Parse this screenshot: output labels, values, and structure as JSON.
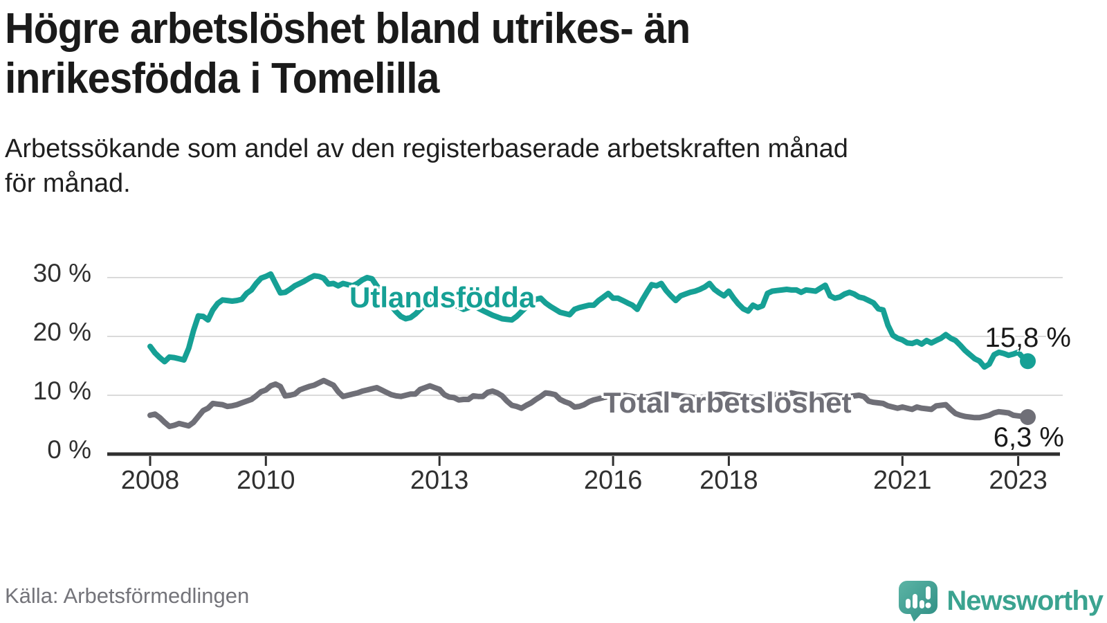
{
  "header": {
    "title_lines": [
      "Högre arbetslöshet bland utrikes- än",
      "inrikesfödda i Tomelilla"
    ],
    "subtitle_lines": [
      "Arbetssökande som andel av den registerbaserade arbetskraften månad",
      "för månad."
    ]
  },
  "chart_data": {
    "type": "line",
    "title": "Högre arbetslöshet bland utrikes- än inrikesfödda i Tomelilla",
    "subtitle": "Arbetssökande som andel av den registerbaserade arbetskraften månad för månad.",
    "frequency": "monthly",
    "x_start": "2008-01",
    "x_end": "2023-03",
    "xlabel": "",
    "ylabel": "",
    "ylim": [
      0,
      32
    ],
    "grid": "horizontal",
    "legend_position": "inline-labels",
    "x_axis": {
      "tick_years": [
        2008,
        2010,
        2013,
        2016,
        2018,
        2021,
        2023
      ]
    },
    "y_axis": {
      "ticks": [
        {
          "value": 0,
          "label": "0 %"
        },
        {
          "value": 10,
          "label": "10 %"
        },
        {
          "value": 20,
          "label": "20 %"
        },
        {
          "value": 30,
          "label": "30 %"
        }
      ]
    },
    "series": [
      {
        "name": "Utlandsfödda",
        "label": "Utlandsfödda",
        "color": "#16a095",
        "end_label": "15,8 %",
        "last_value": 15.8,
        "values": [
          18.3,
          17.2,
          16.4,
          15.7,
          16.5,
          16.4,
          16.2,
          16.0,
          18.0,
          21.0,
          23.5,
          23.4,
          22.8,
          24.5,
          25.6,
          26.2,
          26.1,
          26.0,
          26.1,
          26.3,
          27.3,
          27.9,
          29.0,
          29.9,
          30.2,
          30.6,
          29.0,
          27.4,
          27.5,
          28.0,
          28.6,
          29.0,
          29.4,
          29.9,
          30.3,
          30.2,
          29.9,
          28.9,
          29.0,
          28.6,
          29.0,
          28.8,
          28.6,
          29.0,
          29.6,
          30.0,
          29.8,
          28.6,
          27.5,
          26.3,
          25.2,
          24.2,
          23.4,
          23.0,
          23.2,
          23.8,
          24.6,
          25.4,
          25.9,
          26.2,
          26.0,
          25.7,
          25.9,
          25.4,
          25.0,
          24.6,
          24.9,
          25.2,
          24.8,
          24.4,
          24.0,
          23.6,
          23.3,
          23.0,
          22.9,
          22.8,
          23.4,
          24.2,
          25.0,
          25.8,
          26.3,
          26.5,
          25.7,
          25.1,
          24.6,
          24.1,
          23.9,
          23.7,
          24.6,
          24.9,
          25.1,
          25.3,
          25.3,
          26.1,
          26.7,
          27.3,
          26.5,
          26.5,
          26.1,
          25.7,
          25.3,
          24.6,
          26.1,
          27.5,
          28.8,
          28.6,
          29.0,
          27.8,
          26.9,
          26.1,
          26.9,
          27.2,
          27.5,
          27.7,
          28.0,
          28.4,
          29.0,
          28.0,
          27.4,
          26.9,
          27.7,
          26.5,
          25.5,
          24.7,
          24.3,
          25.3,
          24.9,
          25.2,
          27.3,
          27.7,
          27.8,
          27.9,
          28.0,
          27.9,
          27.9,
          27.5,
          27.9,
          27.8,
          27.7,
          28.2,
          28.7,
          26.9,
          26.5,
          26.7,
          27.2,
          27.5,
          27.2,
          26.7,
          26.5,
          26.1,
          25.7,
          24.7,
          24.5,
          21.9,
          20.2,
          19.7,
          19.4,
          18.9,
          18.8,
          19.1,
          18.7,
          19.3,
          18.9,
          19.3,
          19.7,
          20.3,
          19.7,
          19.3,
          18.5,
          17.6,
          16.9,
          16.2,
          15.8,
          14.8,
          15.3,
          16.9,
          17.3,
          17.1,
          16.8,
          17.0,
          17.3,
          16.4,
          15.8
        ]
      },
      {
        "name": "Total arbetslöshet",
        "label": "Total arbetslöshet",
        "color": "#6f6f77",
        "end_label": "6,3 %",
        "last_value": 6.3,
        "values": [
          6.6,
          6.8,
          6.2,
          5.4,
          4.7,
          4.9,
          5.2,
          5.0,
          4.8,
          5.4,
          6.4,
          7.4,
          7.8,
          8.6,
          8.5,
          8.4,
          8.1,
          8.2,
          8.4,
          8.7,
          9.0,
          9.3,
          9.9,
          10.6,
          10.9,
          11.6,
          11.9,
          11.5,
          9.9,
          10.0,
          10.2,
          10.9,
          11.2,
          11.5,
          11.7,
          12.1,
          12.5,
          12.1,
          11.7,
          10.6,
          9.8,
          10.0,
          10.2,
          10.4,
          10.7,
          10.9,
          11.1,
          11.3,
          10.9,
          10.5,
          10.1,
          9.9,
          9.8,
          10.0,
          10.2,
          10.2,
          11.0,
          11.3,
          11.6,
          11.3,
          11.0,
          10.1,
          9.7,
          9.6,
          9.2,
          9.3,
          9.3,
          9.9,
          9.8,
          9.8,
          10.5,
          10.7,
          10.4,
          9.9,
          9.0,
          8.3,
          8.1,
          7.8,
          8.3,
          8.7,
          9.3,
          9.8,
          10.4,
          10.3,
          10.1,
          9.3,
          8.9,
          8.6,
          8.0,
          8.1,
          8.4,
          8.9,
          9.2,
          9.4,
          9.6,
          9.8,
          9.9,
          10.0,
          10.0,
          9.9,
          9.8,
          9.6,
          9.5,
          9.7,
          9.9,
          10.1,
          10.2,
          10.2,
          10.1,
          10.0,
          9.9,
          9.8,
          9.7,
          9.6,
          9.6,
          9.7,
          9.9,
          10.0,
          10.1,
          10.2,
          10.1,
          10.0,
          9.9,
          9.8,
          9.7,
          9.6,
          9.6,
          9.7,
          9.8,
          10.0,
          10.1,
          10.2,
          10.3,
          10.4,
          10.2,
          10.1,
          10.0,
          9.9,
          9.8,
          9.8,
          9.9,
          10.0,
          10.0,
          9.9,
          9.8,
          9.8,
          9.9,
          10.0,
          9.8,
          9.0,
          8.8,
          8.7,
          8.6,
          8.2,
          8.0,
          7.8,
          8.0,
          7.8,
          7.6,
          8.0,
          7.8,
          7.7,
          7.6,
          8.2,
          8.3,
          8.4,
          7.6,
          6.9,
          6.6,
          6.4,
          6.3,
          6.2,
          6.2,
          6.4,
          6.6,
          7.0,
          7.2,
          7.1,
          7.0,
          6.6,
          6.5,
          6.4,
          6.3
        ]
      }
    ]
  },
  "footer": {
    "source": "Källa: Arbetsförmedlingen",
    "brand": "Newsworthy"
  },
  "colors": {
    "accent_teal": "#16a095",
    "brand_teal": "#3ba390",
    "line_gray": "#6f6f77",
    "gridline": "#dadada",
    "axis": "#333333",
    "text_dark": "#1a1a1a",
    "text_muted": "#74747a"
  }
}
